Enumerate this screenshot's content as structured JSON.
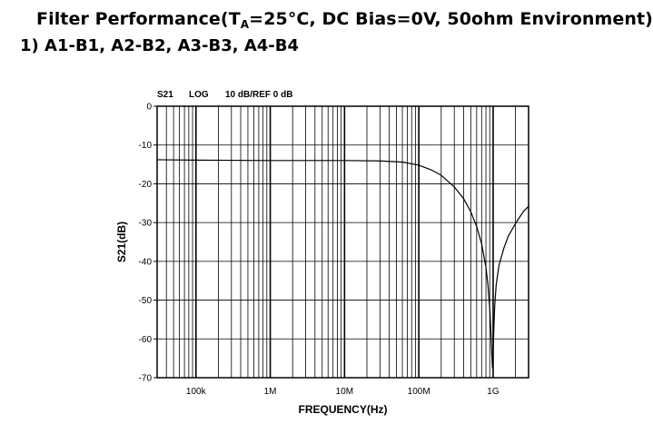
{
  "heading": {
    "prefix": "Filter Performance(T",
    "subscript": "A",
    "suffix": "=25°C, DC Bias=0V, 50ohm Environment)"
  },
  "subheading": "1) A1-B1, A2-B2, A3-B3, A4-B4",
  "chart_data": {
    "type": "line",
    "header": {
      "param": "S21",
      "format": "LOG",
      "scale": "10 dB/REF 0 dB"
    },
    "xlabel": "FREQUENCY(Hz)",
    "ylabel": "S21(dB)",
    "xscale": "log",
    "xlim": [
      30000,
      3000000000
    ],
    "ylim": [
      -70,
      0
    ],
    "grid": true,
    "x_ticks": [
      {
        "value": 100000,
        "label": "100k"
      },
      {
        "value": 1000000,
        "label": "1M"
      },
      {
        "value": 10000000,
        "label": "10M"
      },
      {
        "value": 100000000,
        "label": "100M"
      },
      {
        "value": 1000000000,
        "label": "1G"
      }
    ],
    "y_ticks": [
      {
        "value": 0,
        "label": "0"
      },
      {
        "value": -10,
        "label": "-10"
      },
      {
        "value": -20,
        "label": "-20"
      },
      {
        "value": -30,
        "label": "-30"
      },
      {
        "value": -40,
        "label": "-40"
      },
      {
        "value": -50,
        "label": "-50"
      },
      {
        "value": -60,
        "label": "-60"
      },
      {
        "value": -70,
        "label": "-70"
      }
    ],
    "series": [
      {
        "x": [
          30000,
          100000,
          1000000,
          10000000,
          30000000,
          60000000,
          100000000,
          150000000,
          200000000,
          300000000,
          400000000,
          500000000,
          600000000,
          700000000,
          800000000,
          850000000,
          900000000,
          930000000,
          960000000,
          980000000,
          1000000000,
          1020000000,
          1050000000,
          1100000000,
          1200000000,
          1400000000,
          1600000000,
          1900000000,
          2200000000,
          2600000000,
          3000000000
        ],
        "y": [
          -13.8,
          -13.9,
          -14.0,
          -14.0,
          -14.1,
          -14.4,
          -15.2,
          -16.5,
          -17.8,
          -20.8,
          -23.8,
          -27.2,
          -31.0,
          -35.5,
          -41.5,
          -46.0,
          -52.0,
          -57.5,
          -64.0,
          -67.5,
          -64.0,
          -58.0,
          -51.5,
          -46.0,
          -41.0,
          -36.5,
          -33.5,
          -31.0,
          -29.0,
          -27.0,
          -25.8
        ]
      }
    ]
  }
}
